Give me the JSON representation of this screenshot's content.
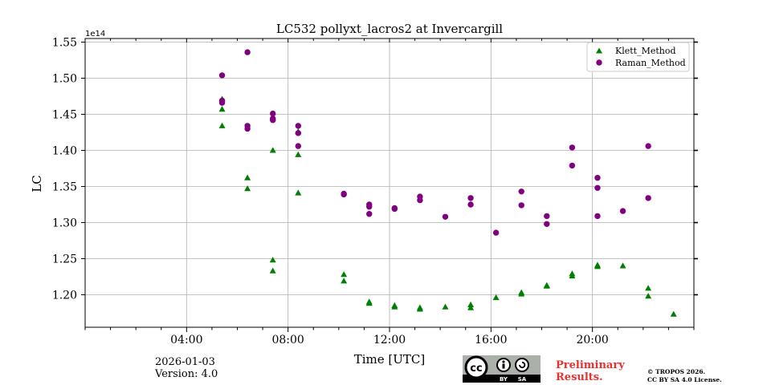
{
  "chart_data": {
    "type": "scatter",
    "title": "LC532 pollyxt_lacros2 at Invercargill",
    "xlabel": "Time [UTC]",
    "ylabel": "LC",
    "offset_label": "1e14",
    "x_unit": "hours UTC",
    "xlim": [
      0,
      24
    ],
    "ylim": [
      1.155,
      1.555
    ],
    "x_ticks": [
      4,
      8,
      12,
      16,
      20
    ],
    "x_tick_labels": [
      "04:00",
      "08:00",
      "12:00",
      "16:00",
      "20:00"
    ],
    "y_ticks": [
      1.2,
      1.25,
      1.3,
      1.35,
      1.4,
      1.45,
      1.5,
      1.55
    ],
    "y_tick_labels": [
      "1.20",
      "1.25",
      "1.30",
      "1.35",
      "1.40",
      "1.45",
      "1.50",
      "1.55"
    ],
    "grid": true,
    "legend_position": "top-right",
    "series": [
      {
        "name": "Klett_Method",
        "marker": "triangle",
        "color": "#008000",
        "points": [
          [
            5.4,
            1.471
          ],
          [
            5.4,
            1.457
          ],
          [
            5.4,
            1.434
          ],
          [
            6.4,
            1.362
          ],
          [
            6.4,
            1.347
          ],
          [
            7.4,
            1.4
          ],
          [
            7.4,
            1.248
          ],
          [
            7.4,
            1.233
          ],
          [
            8.4,
            1.426
          ],
          [
            8.4,
            1.394
          ],
          [
            8.4,
            1.341
          ],
          [
            10.2,
            1.228
          ],
          [
            10.2,
            1.219
          ],
          [
            11.2,
            1.19
          ],
          [
            11.2,
            1.188
          ],
          [
            12.2,
            1.185
          ],
          [
            12.2,
            1.183
          ],
          [
            13.2,
            1.182
          ],
          [
            13.2,
            1.18
          ],
          [
            14.2,
            1.183
          ],
          [
            15.2,
            1.186
          ],
          [
            15.2,
            1.182
          ],
          [
            16.2,
            1.196
          ],
          [
            17.2,
            1.203
          ],
          [
            17.2,
            1.201
          ],
          [
            18.2,
            1.213
          ],
          [
            18.2,
            1.212
          ],
          [
            19.2,
            1.229
          ],
          [
            19.2,
            1.226
          ],
          [
            20.2,
            1.241
          ],
          [
            20.2,
            1.239
          ],
          [
            21.2,
            1.24
          ],
          [
            22.2,
            1.209
          ],
          [
            22.2,
            1.198
          ],
          [
            23.2,
            1.173
          ]
        ]
      },
      {
        "name": "Raman_Method",
        "marker": "circle",
        "color": "#800080",
        "points": [
          [
            5.4,
            1.504
          ],
          [
            5.4,
            1.469
          ],
          [
            5.4,
            1.466
          ],
          [
            6.4,
            1.536
          ],
          [
            6.4,
            1.434
          ],
          [
            6.4,
            1.43
          ],
          [
            7.4,
            1.451
          ],
          [
            7.4,
            1.444
          ],
          [
            7.4,
            1.442
          ],
          [
            8.4,
            1.434
          ],
          [
            8.4,
            1.424
          ],
          [
            8.4,
            1.406
          ],
          [
            10.2,
            1.34
          ],
          [
            10.2,
            1.339
          ],
          [
            11.2,
            1.325
          ],
          [
            11.2,
            1.322
          ],
          [
            11.2,
            1.312
          ],
          [
            12.2,
            1.32
          ],
          [
            12.2,
            1.319
          ],
          [
            13.2,
            1.336
          ],
          [
            13.2,
            1.331
          ],
          [
            14.2,
            1.308
          ],
          [
            15.2,
            1.334
          ],
          [
            15.2,
            1.325
          ],
          [
            16.2,
            1.286
          ],
          [
            17.2,
            1.343
          ],
          [
            17.2,
            1.324
          ],
          [
            18.2,
            1.309
          ],
          [
            18.2,
            1.298
          ],
          [
            19.2,
            1.404
          ],
          [
            19.2,
            1.379
          ],
          [
            20.2,
            1.362
          ],
          [
            20.2,
            1.348
          ],
          [
            20.2,
            1.309
          ],
          [
            21.2,
            1.316
          ],
          [
            22.2,
            1.406
          ],
          [
            22.2,
            1.334
          ]
        ]
      }
    ]
  },
  "footer": {
    "date": "2026-01-03",
    "version": "Version: 4.0",
    "preliminary_line1": "Preliminary",
    "preliminary_line2": "Results.",
    "copyright_line1": "© TROPOS 2026.",
    "copyright_line2": "CC BY SA 4.0 License.",
    "license_badge": {
      "icon_name": "cc-by-sa-icon",
      "cc_text": "cc",
      "by_text": "BY",
      "sa_text": "SA"
    }
  }
}
